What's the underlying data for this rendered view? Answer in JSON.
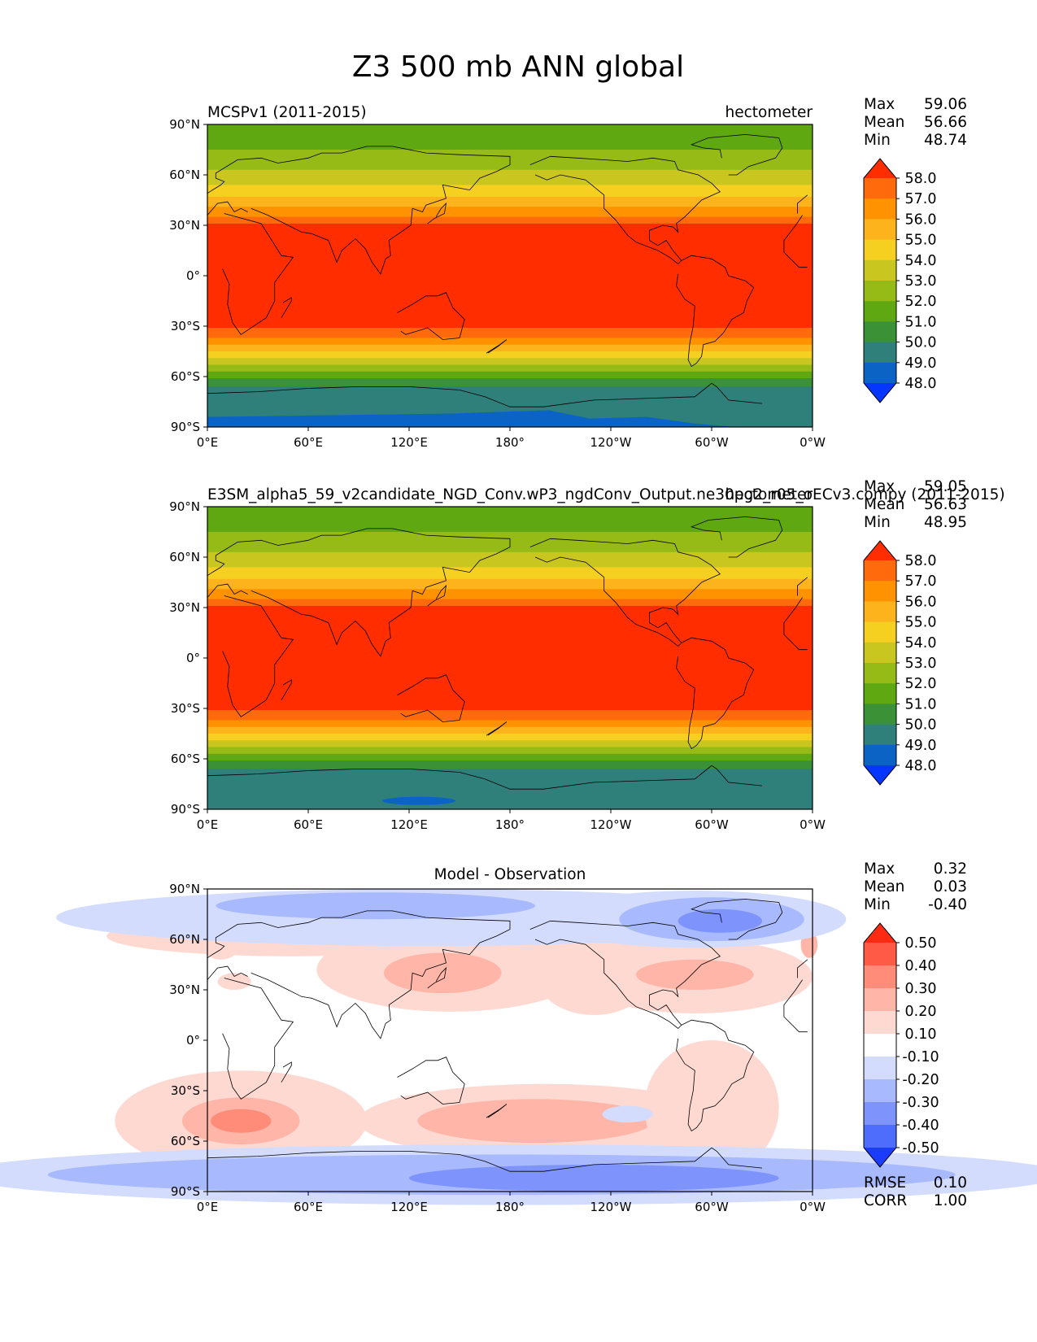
{
  "figure": {
    "title": "Z3 500 mb ANN global"
  },
  "axes": {
    "lat_ticks": [
      "90°N",
      "60°N",
      "30°N",
      "0°",
      "30°S",
      "60°S",
      "90°S"
    ],
    "lon_ticks": [
      "0°E",
      "60°E",
      "120°E",
      "180°",
      "120°W",
      "60°W",
      "0°W"
    ]
  },
  "chart_data": [
    {
      "type": "heatmap",
      "panel": "test",
      "left_title": "MCSPv1 (2011-2015)",
      "right_title": "hectometer",
      "stats": {
        "max_label": "Max",
        "max": "59.06",
        "mean_label": "Mean",
        "mean": "56.66",
        "min_label": "Min",
        "min": "48.74"
      },
      "levels": [
        "58.0",
        "57.0",
        "56.0",
        "55.0",
        "54.0",
        "53.0",
        "52.0",
        "51.0",
        "50.0",
        "49.0",
        "48.0"
      ],
      "colors": [
        "#ff2d00",
        "#ff6a0d",
        "#ff9200",
        "#fdb31b",
        "#f5d020",
        "#c9c61f",
        "#97bb16",
        "#5fa811",
        "#3a9136",
        "#2f7f7a",
        "#0b63c5",
        "#0536ff"
      ],
      "xlim": [
        0,
        360
      ],
      "ylim": [
        -90,
        90
      ]
    },
    {
      "type": "heatmap",
      "panel": "reference",
      "left_title": "E3SM_alpha5_59_v2candidate_NGD_Conv.wP3_ngdConv_Output.ne30pg2_r05_oECv3.compy (2011-2015)",
      "right_title": "hectometer",
      "stats": {
        "max_label": "Max",
        "max": "59.05",
        "mean_label": "Mean",
        "mean": "56.63",
        "min_label": "Min",
        "min": "48.95"
      },
      "levels": [
        "58.0",
        "57.0",
        "56.0",
        "55.0",
        "54.0",
        "53.0",
        "52.0",
        "51.0",
        "50.0",
        "49.0",
        "48.0"
      ],
      "colors": [
        "#ff2d00",
        "#ff6a0d",
        "#ff9200",
        "#fdb31b",
        "#f5d020",
        "#c9c61f",
        "#97bb16",
        "#5fa811",
        "#3a9136",
        "#2f7f7a",
        "#0b63c5",
        "#0536ff"
      ],
      "xlim": [
        0,
        360
      ],
      "ylim": [
        -90,
        90
      ]
    },
    {
      "type": "heatmap",
      "panel": "diff",
      "center_title": "Model - Observation",
      "stats": {
        "max_label": "Max",
        "max": "0.32",
        "mean_label": "Mean",
        "mean": "0.03",
        "min_label": "Min",
        "min": "-0.40"
      },
      "levels": [
        "0.50",
        "0.40",
        "0.30",
        "0.20",
        "0.10",
        "-0.10",
        "-0.20",
        "-0.30",
        "-0.40",
        "-0.50"
      ],
      "colors": [
        "#ff2a12",
        "#fe5a45",
        "#fe8c78",
        "#ffb5a8",
        "#fed9d2",
        "#ffffff",
        "#d3dcfd",
        "#a8b9fd",
        "#7e94fc",
        "#4f6dfc",
        "#1c3cfd"
      ],
      "extra": {
        "rmse_label": "RMSE",
        "rmse": "0.10",
        "corr_label": "CORR",
        "corr": "1.00"
      },
      "xlim": [
        0,
        360
      ],
      "ylim": [
        -90,
        90
      ]
    }
  ]
}
